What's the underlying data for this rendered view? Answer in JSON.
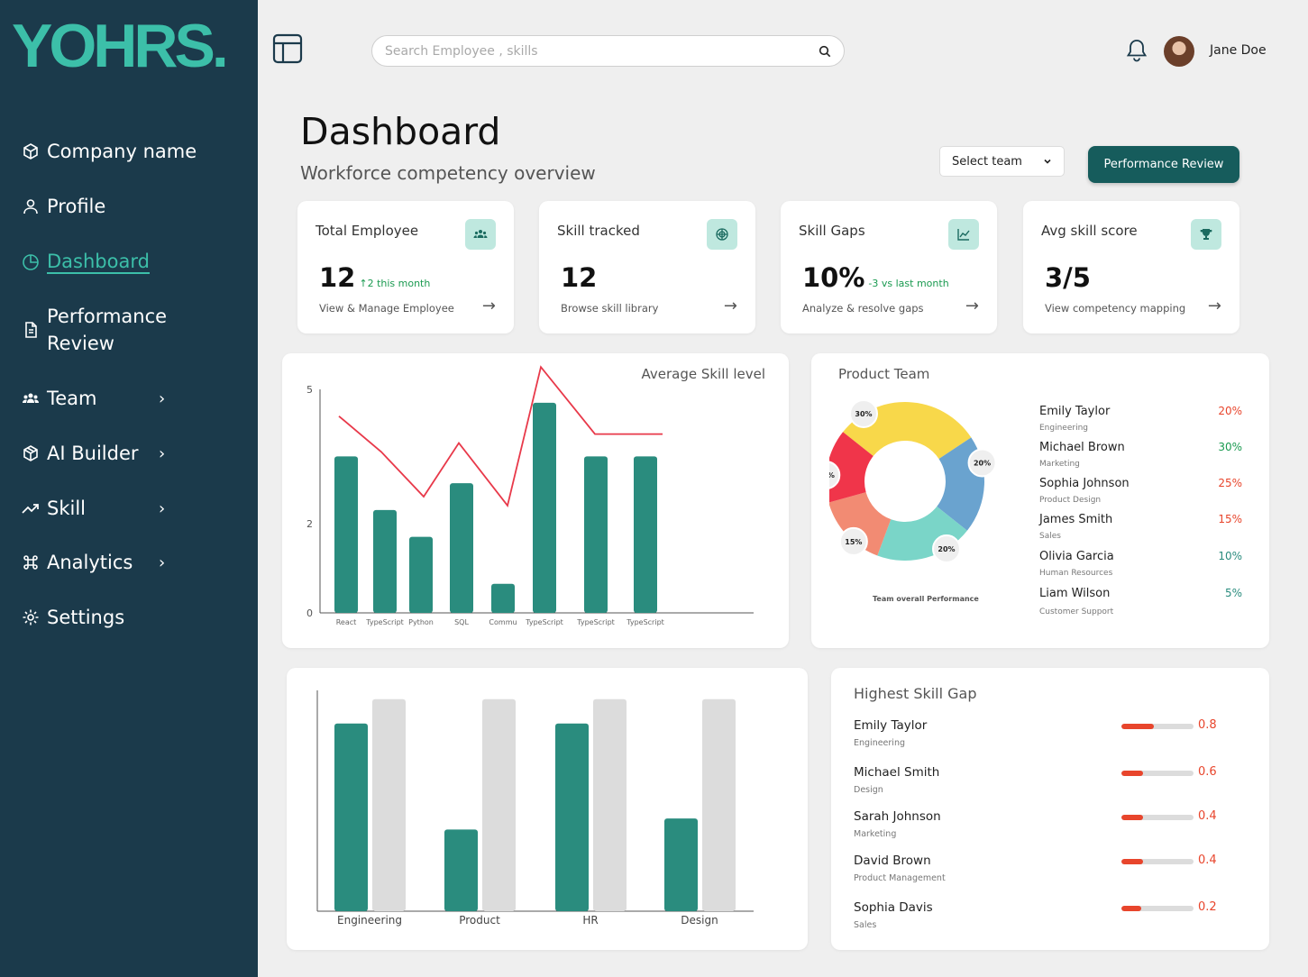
{
  "app": {
    "logo": "YOHRS."
  },
  "sidebar": {
    "items": [
      {
        "label": "Company name",
        "icon": "box-icon"
      },
      {
        "label": "Profile",
        "icon": "user-icon"
      },
      {
        "label": "Dashboard",
        "icon": "pie-icon",
        "active": true
      },
      {
        "label": "Performance",
        "label2": "Review",
        "icon": "document-icon"
      },
      {
        "label": "Team",
        "icon": "team-icon",
        "chevron": "›"
      },
      {
        "label": "AI Builder",
        "icon": "cube-icon",
        "chevron": "›"
      },
      {
        "label": "Skill",
        "icon": "trend-icon",
        "chevron": "›"
      },
      {
        "label": "Analytics",
        "icon": "command-icon",
        "chevron": "›"
      },
      {
        "label": "Settings",
        "icon": "gear-icon"
      }
    ]
  },
  "header": {
    "search_placeholder": "Search Employee , skills",
    "user_name": "Jane Doe"
  },
  "page": {
    "title": "Dashboard",
    "subtitle": "Workforce competency overview",
    "select_team": "Select team",
    "perf_button": "Performance Review"
  },
  "stats": [
    {
      "title": "Total Employee",
      "value": "12",
      "delta": "↑2 this month",
      "link": "View & Manage Employee",
      "icon": "team-icon"
    },
    {
      "title": "Skill tracked",
      "value": "12",
      "delta": "",
      "link": "Browse skill library",
      "icon": "target-icon"
    },
    {
      "title": "Skill Gaps",
      "value": "10%",
      "delta": "-3 vs last month",
      "link": "Analyze & resolve gaps",
      "icon": "chart-icon"
    },
    {
      "title": "Avg skill score",
      "value": "3/5",
      "delta": "",
      "link": "View competency mapping",
      "icon": "trophy-icon"
    }
  ],
  "colors": {
    "accent": "#2a8c7e",
    "sidebar": "#1b3a4b",
    "logo": "#3cbfa9",
    "danger": "#e8452c",
    "line": "#e8394a"
  },
  "avg_skill_title": "Average Skill level",
  "product_team": {
    "title": "Product Team",
    "donut_caption": "Team overall Performance",
    "members": [
      {
        "name": "Emily Taylor",
        "role": "Engineering",
        "pct": "20%",
        "color": "#e8452c"
      },
      {
        "name": "Michael Brown",
        "role": "Marketing",
        "pct": "30%",
        "color": "#1a9a50"
      },
      {
        "name": "Sophia Johnson",
        "role": "Product Design",
        "pct": "25%",
        "color": "#e8452c"
      },
      {
        "name": "James Smith",
        "role": "Sales",
        "pct": "15%",
        "color": "#e8452c"
      },
      {
        "name": "Olivia Garcia",
        "role": "Human Resources",
        "pct": "10%",
        "color": "#2a8c7e"
      },
      {
        "name": "Liam Wilson",
        "role": "Customer Support",
        "pct": "5%",
        "color": "#2a8c7e"
      }
    ]
  },
  "skill_gap": {
    "title": "Highest Skill Gap",
    "rows": [
      {
        "name": "Emily Taylor",
        "role": "Engineering",
        "value": "0.8",
        "fill": 0.45
      },
      {
        "name": "Michael Smith",
        "role": "Design",
        "value": "0.6",
        "fill": 0.3
      },
      {
        "name": "Sarah Johnson",
        "role": "Marketing",
        "value": "0.4",
        "fill": 0.3
      },
      {
        "name": "David Brown",
        "role": "Product Management",
        "value": "0.4",
        "fill": 0.3
      },
      {
        "name": "Sophia Davis",
        "role": "Sales",
        "value": "0.2",
        "fill": 0.28
      }
    ]
  },
  "chart_data": [
    {
      "type": "bar",
      "title": "Average Skill level",
      "categories": [
        "React",
        "TypeScript",
        "Python",
        "SQL",
        "Commu",
        "TypeScript",
        "TypeScript",
        "TypeScript"
      ],
      "series": [
        {
          "values": [
            3.5,
            2.3,
            1.7,
            2.9,
            0.65,
            4.7,
            3.5,
            3.5
          ],
          "kind": "bar"
        },
        {
          "values": [
            4.4,
            3.6,
            2.6,
            3.8,
            2.4,
            5.5,
            4.0,
            4.0
          ],
          "kind": "line"
        }
      ],
      "yticks": [
        "0",
        "2",
        "5"
      ],
      "ylim": [
        0,
        5
      ]
    },
    {
      "type": "pie",
      "title": "",
      "labels": [
        "30%",
        "20%",
        "20%",
        "15%",
        "15%"
      ],
      "values": [
        30,
        20,
        20,
        15,
        15
      ],
      "colors": [
        "#f8d84a",
        "#6aa3cf",
        "#7ad5c8",
        "#f28b73",
        "#f0354a"
      ]
    },
    {
      "type": "bar",
      "categories": [
        "Engineering",
        "Product",
        "HR",
        "Design"
      ],
      "series": [
        {
          "values": [
            85,
            37,
            85,
            42
          ],
          "color": "#2a8c7e"
        },
        {
          "values": [
            96,
            96,
            96,
            96
          ],
          "color": "#dcdcdc"
        }
      ],
      "ylim": [
        0,
        100
      ]
    }
  ]
}
